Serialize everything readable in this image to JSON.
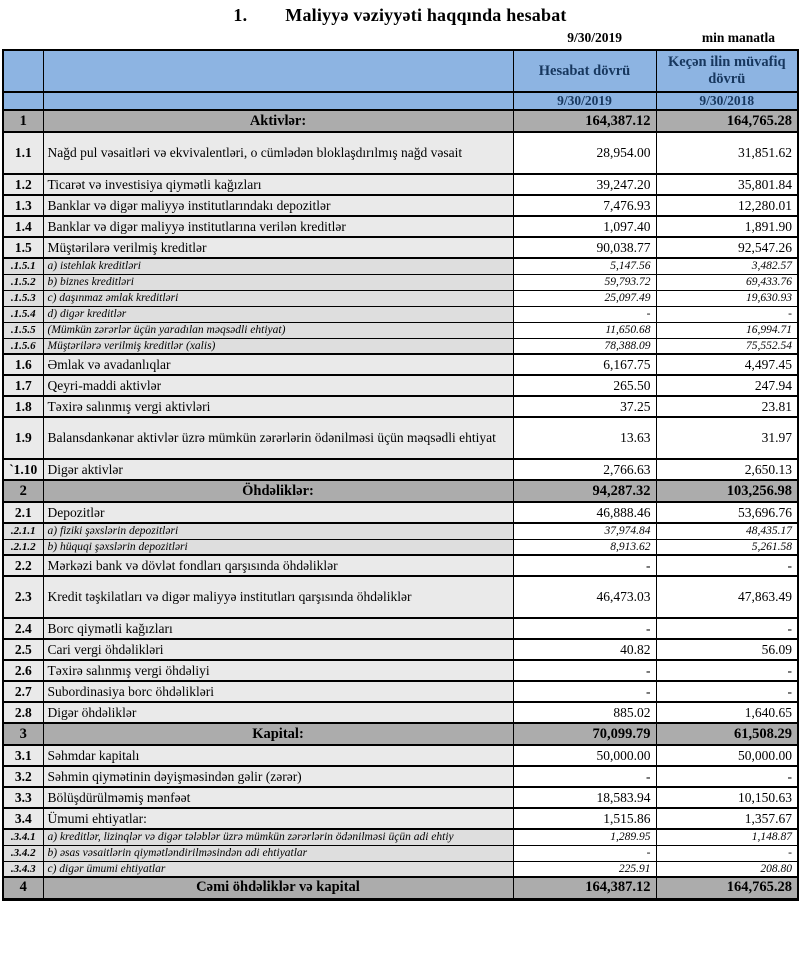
{
  "title": {
    "number": "1.",
    "text": "Maliyyə vəziyyəti haqqında hesabat"
  },
  "meta": {
    "date": "9/30/2019",
    "unit": "min manatla"
  },
  "table": {
    "col_headers": {
      "current": "Hesabat dövrü",
      "prior": "Keçən ilin müvafiq dövrü",
      "current_date": "9/30/2019",
      "prior_date": "9/30/2018"
    },
    "rows": [
      {
        "no": "1",
        "label": "Aktivlər:",
        "v1": "164,387.12",
        "v2": "164,765.28",
        "type": "section"
      },
      {
        "no": "1.1",
        "label": "Nağd pul vəsaitləri və  ekvivalentləri, o cümlədən bloklaşdırılmış nağd vəsait",
        "v1": "28,954.00",
        "v2": "31,851.62",
        "type": "tall"
      },
      {
        "no": "1.2",
        "label": "Ticarət və investisiya qiymətli kağızları",
        "v1": "39,247.20",
        "v2": "35,801.84",
        "type": "normal"
      },
      {
        "no": "1.3",
        "label": "Banklar və digər maliyyə institutlarındakı depozitlər",
        "v1": "7,476.93",
        "v2": "12,280.01",
        "type": "normal"
      },
      {
        "no": "1.4",
        "label": "Banklar və digər maliyyə institutlarına verilən kreditlər",
        "v1": "1,097.40",
        "v2": "1,891.90",
        "type": "normal"
      },
      {
        "no": "1.5",
        "label": "Müştərilərə verilmiş kreditlər",
        "v1": "90,038.77",
        "v2": "92,547.26",
        "type": "normal"
      },
      {
        "no": ".1.5.1",
        "label": "a) istehlak kreditləri",
        "v1": "5,147.56",
        "v2": "3,482.57",
        "type": "sub"
      },
      {
        "no": ".1.5.2",
        "label": "b) biznes kreditləri",
        "v1": "59,793.72",
        "v2": "69,433.76",
        "type": "sub"
      },
      {
        "no": ".1.5.3",
        "label": "c) daşınmaz əmlak kreditləri",
        "v1": "25,097.49",
        "v2": "19,630.93",
        "type": "sub"
      },
      {
        "no": ".1.5.4",
        "label": "d) digər kreditlər",
        "v1": "-",
        "v2": "-",
        "type": "sub"
      },
      {
        "no": ".1.5.5",
        "label": "(Mümkün zərərlər üçün yaradılan məqsədli ehtiyat)",
        "v1": "11,650.68",
        "v2": "16,994.71",
        "type": "sub"
      },
      {
        "no": ".1.5.6",
        "label": "Müştərilərə verilmiş kreditlər (xalis)",
        "v1": "78,388.09",
        "v2": "75,552.54",
        "type": "sub"
      },
      {
        "no": "1.6",
        "label": "Əmlak və avadanlıqlar",
        "v1": "6,167.75",
        "v2": "4,497.45",
        "type": "normal"
      },
      {
        "no": "1.7",
        "label": "Qeyri-maddi aktivlər",
        "v1": "265.50",
        "v2": "247.94",
        "type": "normal"
      },
      {
        "no": "1.8",
        "label": "Təxirə salınmış vergi aktivləri",
        "v1": "37.25",
        "v2": "23.81",
        "type": "normal"
      },
      {
        "no": "1.9",
        "label": "Balansdankənar aktivlər üzrə mümkün zərərlərin ödənilməsi üçün məqsədli ehtiyat",
        "v1": "13.63",
        "v2": "31.97",
        "type": "tall"
      },
      {
        "no": "`1.10",
        "label": "Digər aktivlər",
        "v1": "2,766.63",
        "v2": "2,650.13",
        "type": "normal"
      },
      {
        "no": "2",
        "label": "Öhdəliklər:",
        "v1": "94,287.32",
        "v2": "103,256.98",
        "type": "section"
      },
      {
        "no": "2.1",
        "label": "Depozitlər",
        "v1": "46,888.46",
        "v2": "53,696.76",
        "type": "normal"
      },
      {
        "no": ".2.1.1",
        "label": "a) fiziki şəxslərin depozitləri",
        "v1": "37,974.84",
        "v2": "48,435.17",
        "type": "sub"
      },
      {
        "no": ".2.1.2",
        "label": "b) hüquqi şəxslərin depozitləri",
        "v1": "8,913.62",
        "v2": "5,261.58",
        "type": "sub"
      },
      {
        "no": "2.2",
        "label": "Mərkəzi bank və dövlət fondları qarşısında öhdəliklər",
        "v1": "-",
        "v2": "-",
        "type": "normal"
      },
      {
        "no": "2.3",
        "label": "Kredit təşkilatları və digər maliyyə institutları qarşısında öhdəliklər",
        "v1": "46,473.03",
        "v2": "47,863.49",
        "type": "tall"
      },
      {
        "no": "2.4",
        "label": "Borc qiymətli kağızları",
        "v1": "-",
        "v2": "-",
        "type": "normal"
      },
      {
        "no": "2.5",
        "label": "Cari vergi öhdəlikləri",
        "v1": "40.82",
        "v2": "56.09",
        "type": "normal"
      },
      {
        "no": "2.6",
        "label": "Təxirə salınmış vergi öhdəliyi",
        "v1": "-",
        "v2": "-",
        "type": "normal"
      },
      {
        "no": "2.7",
        "label": "Subordinasiya borc öhdəlikləri",
        "v1": "-",
        "v2": "-",
        "type": "normal"
      },
      {
        "no": "2.8",
        "label": "Digər öhdəliklər",
        "v1": "885.02",
        "v2": "1,640.65",
        "type": "normal"
      },
      {
        "no": "3",
        "label": "Kapital:",
        "v1": "70,099.79",
        "v2": "61,508.29",
        "type": "section"
      },
      {
        "no": "3.1",
        "label": "Səhmdar kapitalı",
        "v1": "50,000.00",
        "v2": "50,000.00",
        "type": "normal"
      },
      {
        "no": "3.2",
        "label": "Səhmin qiymətinin dəyişməsindən gəlir (zərər)",
        "v1": "-",
        "v2": "-",
        "type": "normal"
      },
      {
        "no": "3.3",
        "label": "Bölüşdürülməmiş mənfəət",
        "v1": "18,583.94",
        "v2": "10,150.63",
        "type": "normal"
      },
      {
        "no": "3.4",
        "label": "Ümumi ehtiyatlar:",
        "v1": "1,515.86",
        "v2": "1,357.67",
        "type": "normal"
      },
      {
        "no": ".3.4.1",
        "label": "a) kreditlər, lizinqlər və digər tələblər üzrə mümkün zərərlərin ödənilməsi üçün adi ehtiy",
        "v1": "1,289.95",
        "v2": "1,148.87",
        "type": "sub",
        "clip": true
      },
      {
        "no": ".3.4.2",
        "label": "b) əsas vəsaitlərin qiymətləndirilməsindən adi ehtiyatlar",
        "v1": "-",
        "v2": "-",
        "type": "sub"
      },
      {
        "no": ".3.4.3",
        "label": "c) digər ümumi ehtiyatlar",
        "v1": "225.91",
        "v2": "208.80",
        "type": "sub"
      },
      {
        "no": "4",
        "label": "Cəmi öhdəliklər və kapital",
        "v1": "164,387.12",
        "v2": "164,765.28",
        "type": "section"
      }
    ]
  }
}
